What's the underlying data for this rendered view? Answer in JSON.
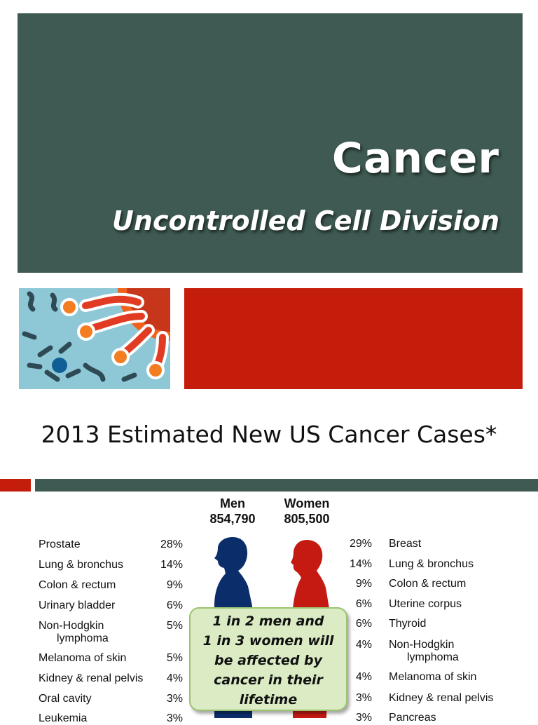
{
  "slide1": {
    "title": "Cancer",
    "subtitle": "Uncontrolled Cell Division"
  },
  "slide2": {
    "title": "2013 Estimated New US Cancer Cases*",
    "men": {
      "label": "Men",
      "total": "854,790"
    },
    "women": {
      "label": "Women",
      "total": "805,500"
    },
    "men_rows": [
      {
        "site": "Prostate",
        "site2": "",
        "pct": "28%"
      },
      {
        "site": "Lung & bronchus",
        "site2": "",
        "pct": "14%"
      },
      {
        "site": "Colon & rectum",
        "site2": "",
        "pct": "9%"
      },
      {
        "site": "Urinary bladder",
        "site2": "",
        "pct": "6%"
      },
      {
        "site": "Non-Hodgkin",
        "site2": "lymphoma",
        "pct": "5%"
      },
      {
        "site": "Melanoma of skin",
        "site2": "",
        "pct": "5%"
      },
      {
        "site": "Kidney & renal pelvis",
        "site2": "",
        "pct": "4%"
      },
      {
        "site": "Oral cavity",
        "site2": "",
        "pct": "3%"
      },
      {
        "site": "Leukemia",
        "site2": "",
        "pct": "3%"
      }
    ],
    "women_rows": [
      {
        "site": "Breast",
        "site2": "",
        "pct": "29%"
      },
      {
        "site": "Lung & bronchus",
        "site2": "",
        "pct": "14%"
      },
      {
        "site": "Colon & rectum",
        "site2": "",
        "pct": "9%"
      },
      {
        "site": "Uterine corpus",
        "site2": "",
        "pct": "6%"
      },
      {
        "site": "Thyroid",
        "site2": "",
        "pct": "6%"
      },
      {
        "site": "Non-Hodgkin",
        "site2": "lymphoma",
        "pct": "4%"
      },
      {
        "site": "Melanoma of skin",
        "site2": "",
        "pct": "4%"
      },
      {
        "site": "Kidney & renal pelvis",
        "site2": "",
        "pct": "3%"
      },
      {
        "site": "Pancreas",
        "site2": "",
        "pct": "3%"
      }
    ],
    "callout": {
      "line1": "1 in 2 men and",
      "line2": "1 in 3 women will",
      "line3": "be affected by",
      "line4": "cancer in their",
      "line5": "lifetime"
    },
    "colors": {
      "men": "#0b2e6b",
      "women": "#c41a12",
      "accent_red": "#c51d0c",
      "accent_green": "#3e5a52"
    }
  }
}
